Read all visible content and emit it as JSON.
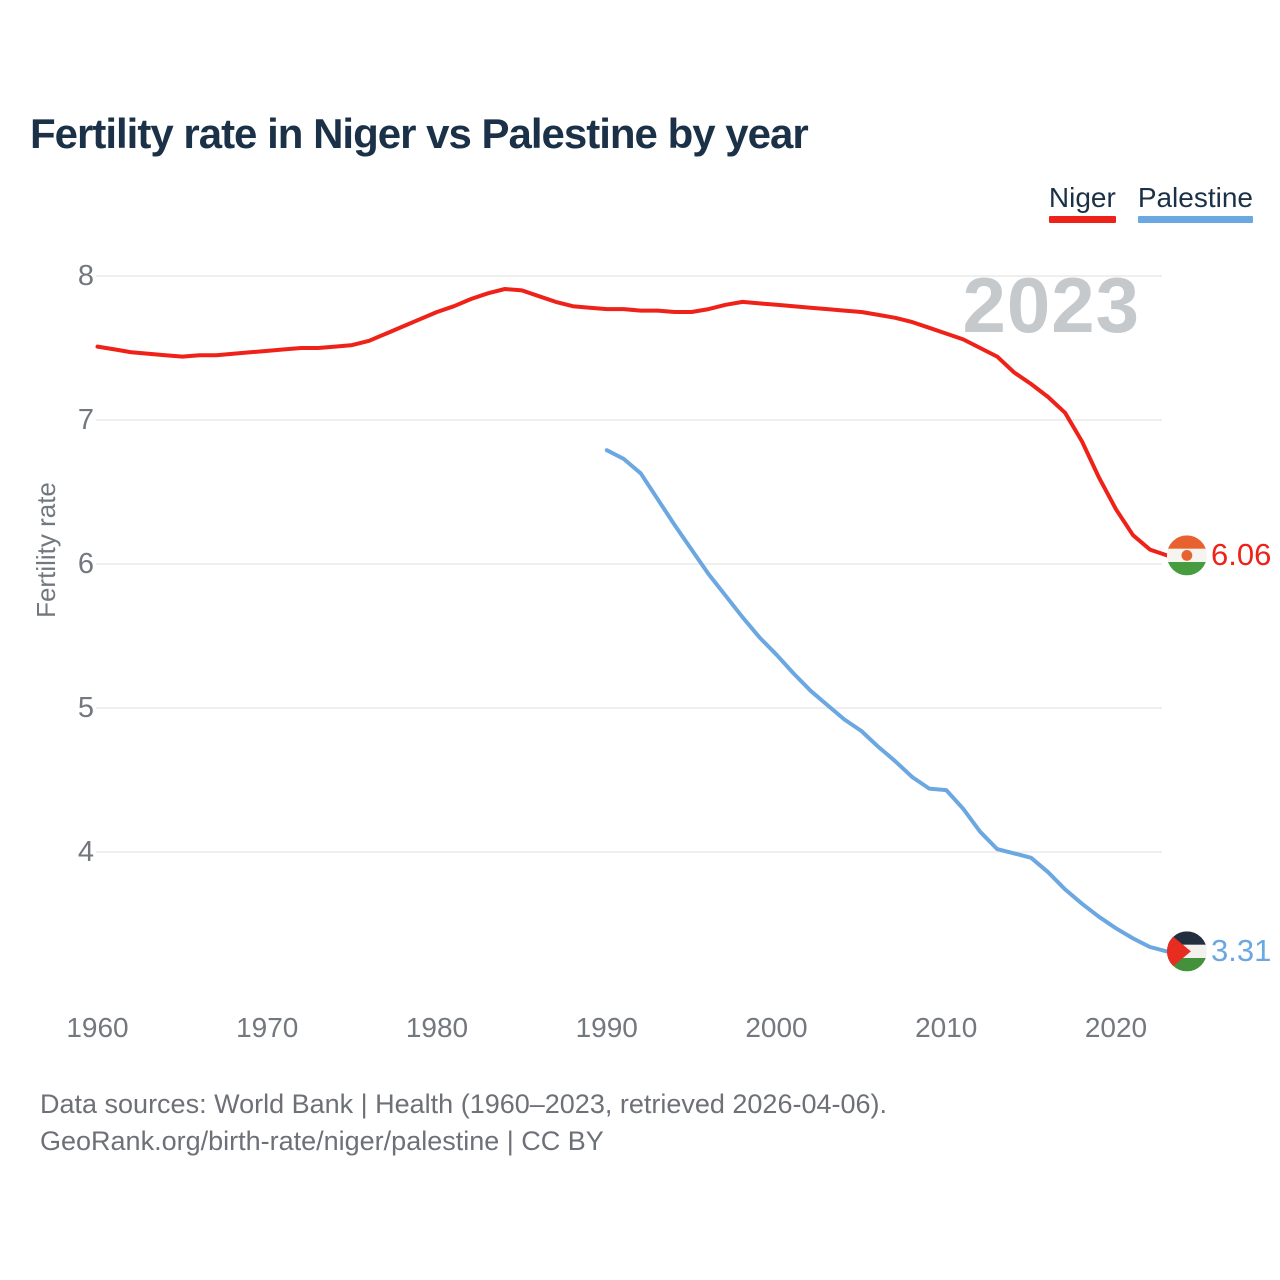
{
  "title": "Fertility rate in Niger vs Palestine by year",
  "watermark": "2023",
  "legend": {
    "items": [
      {
        "label": "Niger",
        "color": "#ee2218"
      },
      {
        "label": "Palestine",
        "color": "#6ba7e0"
      }
    ]
  },
  "footer": {
    "line1": "Data sources: World Bank | Health (1960–2023, retrieved 2026-04-06).",
    "line2": "GeoRank.org/birth-rate/niger/palestine | CC BY"
  },
  "icons": {
    "niger": "niger-flag-circle-icon",
    "palestine": "palestine-flag-circle-icon"
  },
  "colors": {
    "title_text": "#1b3147",
    "tick_text": "#73777e",
    "gridline": "#eaeaec",
    "watermark": "#c6c9cc",
    "niger_red": "#ee2218",
    "palestine_blue": "#6ba7e0"
  },
  "chart_data": {
    "type": "line",
    "title": "Fertility rate in Niger vs Palestine by year",
    "xlabel": "",
    "ylabel": "Fertility rate",
    "x_ticks": [
      1960,
      1970,
      1980,
      1990,
      2000,
      2010,
      2020
    ],
    "y_ticks": [
      8,
      7,
      6,
      5,
      4
    ],
    "xlim": [
      1960,
      2023
    ],
    "ylim": [
      3.2,
      8.25
    ],
    "grid": "horizontal",
    "legend_position": "top-right",
    "series": [
      {
        "name": "Niger",
        "color": "#ee2218",
        "start_year": 1960,
        "values": [
          7.51,
          7.49,
          7.47,
          7.46,
          7.45,
          7.44,
          7.45,
          7.45,
          7.46,
          7.47,
          7.48,
          7.49,
          7.5,
          7.5,
          7.51,
          7.52,
          7.55,
          7.6,
          7.65,
          7.7,
          7.75,
          7.79,
          7.84,
          7.88,
          7.91,
          7.9,
          7.86,
          7.82,
          7.79,
          7.78,
          7.77,
          7.77,
          7.76,
          7.76,
          7.75,
          7.75,
          7.77,
          7.8,
          7.82,
          7.81,
          7.8,
          7.79,
          7.78,
          7.77,
          7.76,
          7.75,
          7.73,
          7.71,
          7.68,
          7.64,
          7.6,
          7.56,
          7.5,
          7.44,
          7.33,
          7.25,
          7.16,
          7.05,
          6.85,
          6.6,
          6.38,
          6.2,
          6.1,
          6.06
        ]
      },
      {
        "name": "Palestine",
        "color": "#6ba7e0",
        "start_year": 1990,
        "values": [
          6.79,
          6.73,
          6.63,
          6.45,
          6.27,
          6.1,
          5.93,
          5.78,
          5.63,
          5.49,
          5.37,
          5.24,
          5.12,
          5.02,
          4.92,
          4.84,
          4.73,
          4.63,
          4.52,
          4.44,
          4.43,
          4.3,
          4.14,
          4.02,
          3.99,
          3.96,
          3.86,
          3.74,
          3.64,
          3.55,
          3.47,
          3.4,
          3.34,
          3.31
        ]
      }
    ],
    "annotations": [
      {
        "series": "Niger",
        "year": 2023,
        "text": "6.06"
      },
      {
        "series": "Palestine",
        "year": 2023,
        "text": "3.31"
      }
    ]
  }
}
